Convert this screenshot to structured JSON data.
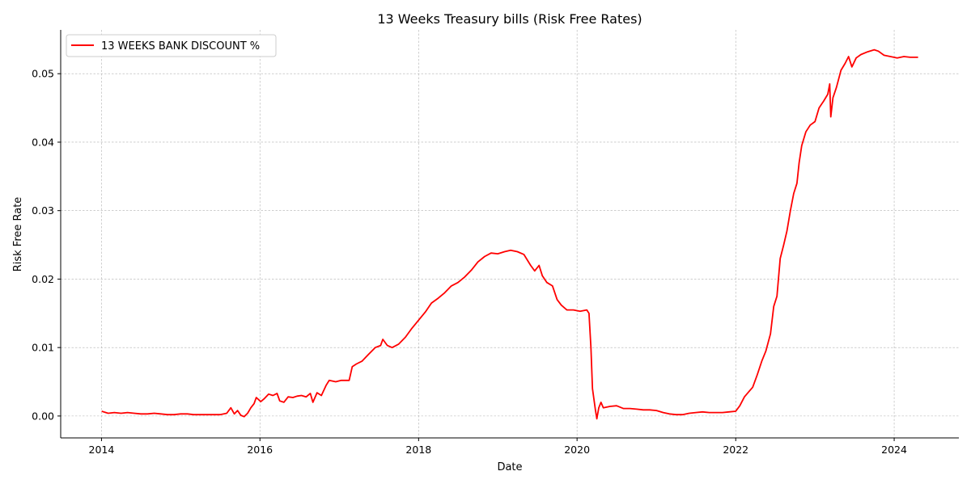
{
  "chart_data": {
    "type": "line",
    "title": "13 Weeks Treasury bills (Risk Free Rates)",
    "xlabel": "Date",
    "ylabel": "Risk Free Rate",
    "xlim": [
      "2013-06-27",
      "2024-10-25"
    ],
    "ylim": [
      -0.0032,
      0.0564
    ],
    "x_ticks": [
      "2014",
      "2016",
      "2018",
      "2020",
      "2022",
      "2024"
    ],
    "y_ticks": [
      "0.00",
      "0.01",
      "0.02",
      "0.03",
      "0.04",
      "0.05"
    ],
    "grid": true,
    "legend_position": "upper left",
    "series": [
      {
        "name": "13 WEEKS BANK DISCOUNT %",
        "color": "#ff0000",
        "points": [
          [
            "2014-01-02",
            0.0007
          ],
          [
            "2014-02-01",
            0.0004
          ],
          [
            "2014-03-01",
            0.0005
          ],
          [
            "2014-04-01",
            0.0004
          ],
          [
            "2014-05-01",
            0.0005
          ],
          [
            "2014-06-01",
            0.0004
          ],
          [
            "2014-07-01",
            0.0003
          ],
          [
            "2014-08-01",
            0.0003
          ],
          [
            "2014-09-01",
            0.0004
          ],
          [
            "2014-10-01",
            0.0003
          ],
          [
            "2014-11-01",
            0.0002
          ],
          [
            "2014-12-01",
            0.0002
          ],
          [
            "2015-01-01",
            0.0003
          ],
          [
            "2015-02-01",
            0.0003
          ],
          [
            "2015-03-01",
            0.0002
          ],
          [
            "2015-04-01",
            0.0002
          ],
          [
            "2015-05-01",
            0.0002
          ],
          [
            "2015-06-01",
            0.0002
          ],
          [
            "2015-07-01",
            0.0002
          ],
          [
            "2015-08-01",
            0.0004
          ],
          [
            "2015-08-20",
            0.0012
          ],
          [
            "2015-09-05",
            0.0003
          ],
          [
            "2015-09-20",
            0.0008
          ],
          [
            "2015-10-05",
            0.0001
          ],
          [
            "2015-10-20",
            -0.0001
          ],
          [
            "2015-11-05",
            0.0004
          ],
          [
            "2015-11-20",
            0.0012
          ],
          [
            "2015-12-05",
            0.0018
          ],
          [
            "2015-12-15",
            0.0027
          ],
          [
            "2016-01-05",
            0.0021
          ],
          [
            "2016-01-20",
            0.0025
          ],
          [
            "2016-02-10",
            0.0032
          ],
          [
            "2016-03-01",
            0.003
          ],
          [
            "2016-03-20",
            0.0033
          ],
          [
            "2016-04-01",
            0.0022
          ],
          [
            "2016-04-20",
            0.002
          ],
          [
            "2016-05-10",
            0.0028
          ],
          [
            "2016-06-01",
            0.0027
          ],
          [
            "2016-06-20",
            0.0029
          ],
          [
            "2016-07-10",
            0.003
          ],
          [
            "2016-08-01",
            0.0028
          ],
          [
            "2016-08-20",
            0.0033
          ],
          [
            "2016-09-01",
            0.002
          ],
          [
            "2016-09-20",
            0.0034
          ],
          [
            "2016-10-10",
            0.003
          ],
          [
            "2016-11-01",
            0.0045
          ],
          [
            "2016-11-15",
            0.0052
          ],
          [
            "2016-12-15",
            0.005
          ],
          [
            "2017-01-10",
            0.0052
          ],
          [
            "2017-02-15",
            0.0052
          ],
          [
            "2017-03-01",
            0.0072
          ],
          [
            "2017-03-20",
            0.0076
          ],
          [
            "2017-04-15",
            0.008
          ],
          [
            "2017-05-15",
            0.009
          ],
          [
            "2017-06-15",
            0.01
          ],
          [
            "2017-07-10",
            0.0103
          ],
          [
            "2017-07-20",
            0.0112
          ],
          [
            "2017-08-10",
            0.0103
          ],
          [
            "2017-09-01",
            0.01
          ],
          [
            "2017-10-01",
            0.0105
          ],
          [
            "2017-11-01",
            0.0115
          ],
          [
            "2017-12-01",
            0.0128
          ],
          [
            "2018-01-01",
            0.014
          ],
          [
            "2018-02-01",
            0.0152
          ],
          [
            "2018-03-01",
            0.0165
          ],
          [
            "2018-04-01",
            0.0172
          ],
          [
            "2018-05-01",
            0.018
          ],
          [
            "2018-06-01",
            0.019
          ],
          [
            "2018-07-01",
            0.0195
          ],
          [
            "2018-08-01",
            0.0203
          ],
          [
            "2018-09-01",
            0.0213
          ],
          [
            "2018-10-01",
            0.0225
          ],
          [
            "2018-11-01",
            0.0233
          ],
          [
            "2018-12-01",
            0.0238
          ],
          [
            "2019-01-01",
            0.0237
          ],
          [
            "2019-02-01",
            0.024
          ],
          [
            "2019-03-01",
            0.0242
          ],
          [
            "2019-04-01",
            0.024
          ],
          [
            "2019-05-01",
            0.0236
          ],
          [
            "2019-06-01",
            0.022
          ],
          [
            "2019-06-20",
            0.0212
          ],
          [
            "2019-07-10",
            0.022
          ],
          [
            "2019-07-25",
            0.0205
          ],
          [
            "2019-08-15",
            0.0195
          ],
          [
            "2019-09-10",
            0.019
          ],
          [
            "2019-10-01",
            0.017
          ],
          [
            "2019-10-20",
            0.0162
          ],
          [
            "2019-11-15",
            0.0155
          ],
          [
            "2019-12-15",
            0.0155
          ],
          [
            "2020-01-15",
            0.0153
          ],
          [
            "2020-02-15",
            0.0155
          ],
          [
            "2020-02-25",
            0.015
          ],
          [
            "2020-03-05",
            0.01
          ],
          [
            "2020-03-12",
            0.004
          ],
          [
            "2020-03-25",
            0.001
          ],
          [
            "2020-04-01",
            -0.0004
          ],
          [
            "2020-04-10",
            0.0012
          ],
          [
            "2020-04-20",
            0.002
          ],
          [
            "2020-05-01",
            0.0012
          ],
          [
            "2020-06-01",
            0.0014
          ],
          [
            "2020-07-01",
            0.0015
          ],
          [
            "2020-08-01",
            0.0011
          ],
          [
            "2020-09-01",
            0.0011
          ],
          [
            "2020-10-01",
            0.001
          ],
          [
            "2020-11-01",
            0.0009
          ],
          [
            "2020-12-01",
            0.0009
          ],
          [
            "2021-01-01",
            0.0008
          ],
          [
            "2021-02-01",
            0.0005
          ],
          [
            "2021-03-01",
            0.0003
          ],
          [
            "2021-04-01",
            0.0002
          ],
          [
            "2021-05-01",
            0.0002
          ],
          [
            "2021-06-01",
            0.0004
          ],
          [
            "2021-07-01",
            0.0005
          ],
          [
            "2021-08-01",
            0.0006
          ],
          [
            "2021-09-01",
            0.0005
          ],
          [
            "2021-10-01",
            0.0005
          ],
          [
            "2021-11-01",
            0.0005
          ],
          [
            "2021-12-01",
            0.0006
          ],
          [
            "2022-01-01",
            0.0007
          ],
          [
            "2022-01-20",
            0.0015
          ],
          [
            "2022-02-10",
            0.0028
          ],
          [
            "2022-03-01",
            0.0035
          ],
          [
            "2022-03-20",
            0.0042
          ],
          [
            "2022-04-10",
            0.006
          ],
          [
            "2022-05-01",
            0.008
          ],
          [
            "2022-05-20",
            0.0095
          ],
          [
            "2022-06-10",
            0.012
          ],
          [
            "2022-06-25",
            0.016
          ],
          [
            "2022-07-10",
            0.0175
          ],
          [
            "2022-07-25",
            0.023
          ],
          [
            "2022-08-10",
            0.025
          ],
          [
            "2022-08-25",
            0.027
          ],
          [
            "2022-09-10",
            0.03
          ],
          [
            "2022-09-25",
            0.0325
          ],
          [
            "2022-10-10",
            0.034
          ],
          [
            "2022-10-20",
            0.037
          ],
          [
            "2022-11-01",
            0.0395
          ],
          [
            "2022-11-20",
            0.0415
          ],
          [
            "2022-12-10",
            0.0425
          ],
          [
            "2023-01-01",
            0.043
          ],
          [
            "2023-01-20",
            0.045
          ],
          [
            "2023-02-10",
            0.046
          ],
          [
            "2023-03-01",
            0.047
          ],
          [
            "2023-03-10",
            0.0485
          ],
          [
            "2023-03-15",
            0.0437
          ],
          [
            "2023-03-25",
            0.0465
          ],
          [
            "2023-04-10",
            0.048
          ],
          [
            "2023-05-01",
            0.0505
          ],
          [
            "2023-05-20",
            0.0515
          ],
          [
            "2023-06-05",
            0.0525
          ],
          [
            "2023-06-20",
            0.051
          ],
          [
            "2023-07-10",
            0.0523
          ],
          [
            "2023-08-01",
            0.0528
          ],
          [
            "2023-09-01",
            0.0532
          ],
          [
            "2023-10-01",
            0.0535
          ],
          [
            "2023-10-20",
            0.0533
          ],
          [
            "2023-11-15",
            0.0527
          ],
          [
            "2023-12-15",
            0.0525
          ],
          [
            "2024-01-15",
            0.0523
          ],
          [
            "2024-02-15",
            0.0525
          ],
          [
            "2024-03-15",
            0.0524
          ],
          [
            "2024-04-20",
            0.0524
          ]
        ]
      }
    ]
  }
}
